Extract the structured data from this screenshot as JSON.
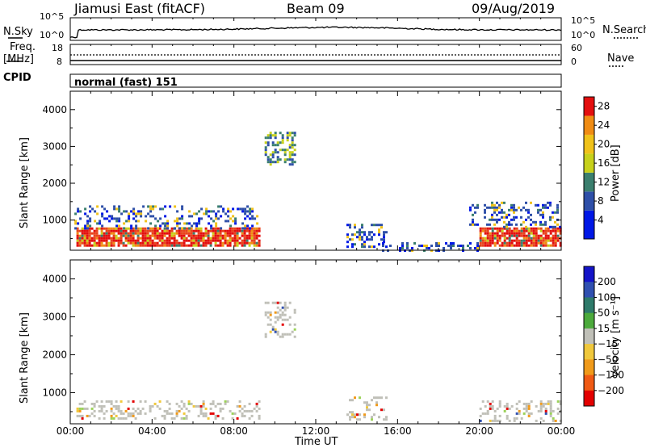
{
  "header": {
    "station": "Jiamusi East (fitACF)",
    "beam": "Beam 09",
    "date": "09/Aug/2019"
  },
  "labels": {
    "nsky": "N.Sky",
    "nsearch": "N.Search",
    "freq": "Freq.",
    "freq_unit": "[MHz]",
    "nave": "Nave",
    "cpid": "CPID",
    "cpid_value": "normal (fast) 151",
    "ylabel": "Slant Range [km]",
    "xlabel": "Time UT",
    "power_label": "Power [dB]",
    "velocity_label": "Velocity [m s⁻¹]"
  },
  "noise_axis": {
    "left_ticks": [
      "10^5",
      "10^0"
    ],
    "right_ticks": [
      "10^5",
      "10^0"
    ]
  },
  "freq_axis": {
    "left_ticks": [
      "18",
      "8"
    ],
    "right_ticks": [
      "60",
      "0"
    ]
  },
  "colors": {
    "power_scale": [
      "#0018e6",
      "#2e4fa8",
      "#3b7f6e",
      "#58a84d",
      "#c7d11b",
      "#f0c21a",
      "#f08c14",
      "#e8441c",
      "#e30f0f",
      "#e30000"
    ],
    "velocity_scale": [
      "#e30000",
      "#f05a14",
      "#f09a1a",
      "#f0c83c",
      "#c0c0b8",
      "#9cd25a",
      "#4caa3c",
      "#2e7a6a",
      "#3050b0",
      "#1414c8"
    ]
  },
  "chart_data": [
    {
      "type": "heatmap",
      "name": "Power",
      "x_ticks": [
        "00:00",
        "04:00",
        "08:00",
        "12:00",
        "16:00",
        "20:00",
        "00:00"
      ],
      "y_ticks": [
        1000,
        2000,
        3000,
        4000
      ],
      "ylim": [
        180,
        4500
      ],
      "colorbar_ticks": [
        4,
        8,
        12,
        16,
        20,
        24,
        28
      ],
      "colorbar_range": [
        0,
        30
      ],
      "regions": [
        {
          "t0": 0.3,
          "t1": 9.3,
          "r0": 300,
          "r1": 800,
          "level": "high"
        },
        {
          "t0": 20.0,
          "t1": 24.0,
          "r0": 280,
          "r1": 800,
          "level": "high"
        },
        {
          "t0": 0.2,
          "t1": 9.2,
          "r0": 800,
          "r1": 1400,
          "level": "low"
        },
        {
          "t0": 19.5,
          "t1": 24.0,
          "r0": 800,
          "r1": 1500,
          "level": "low"
        },
        {
          "t0": 9.5,
          "t1": 11.0,
          "r0": 2500,
          "r1": 3400,
          "level": "mid"
        },
        {
          "t0": 13.5,
          "t1": 15.5,
          "r0": 300,
          "r1": 900,
          "level": "low"
        },
        {
          "t0": 15.0,
          "t1": 20.0,
          "r0": 200,
          "r1": 400,
          "level": "low"
        }
      ]
    },
    {
      "type": "heatmap",
      "name": "Velocity",
      "x_ticks": [
        "00:00",
        "04:00",
        "08:00",
        "12:00",
        "16:00",
        "20:00",
        "00:00"
      ],
      "y_ticks": [
        1000,
        2000,
        3000,
        4000
      ],
      "ylim": [
        180,
        4500
      ],
      "colorbar_ticks": [
        200,
        100,
        50,
        15,
        -15,
        -50,
        -100,
        -200
      ],
      "colorbar_range": [
        -250,
        250
      ],
      "regions": [
        {
          "t0": 0.3,
          "t1": 9.3,
          "r0": 300,
          "r1": 800,
          "level": "near-zero"
        },
        {
          "t0": 20.0,
          "t1": 24.0,
          "r0": 280,
          "r1": 800,
          "level": "near-zero"
        },
        {
          "t0": 9.5,
          "t1": 11.0,
          "r0": 2500,
          "r1": 3400,
          "level": "near-zero"
        },
        {
          "t0": 13.5,
          "t1": 15.5,
          "r0": 300,
          "r1": 900,
          "level": "near-zero"
        }
      ]
    }
  ]
}
